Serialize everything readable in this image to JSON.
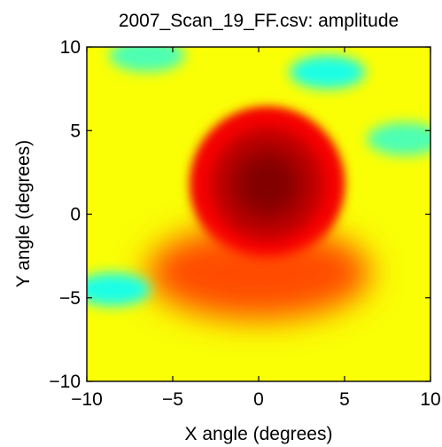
{
  "chart_data": {
    "type": "heatmap",
    "title": "2007_Scan_19_FF.csv: amplitude",
    "xlabel": "X angle (degrees)",
    "ylabel": "Y angle (degrees)",
    "xlim": [
      -10,
      10
    ],
    "ylim": [
      -10,
      10
    ],
    "x_ticks": [
      -10,
      -5,
      0,
      5,
      10
    ],
    "y_ticks": [
      -10,
      -5,
      0,
      5,
      10
    ],
    "x_tick_labels": [
      "−10",
      "−5",
      "0",
      "5",
      "10"
    ],
    "y_tick_labels": [
      "−10",
      "−5",
      "0",
      "5",
      "10"
    ],
    "colormap": "jet",
    "colorbar": false,
    "grid": false,
    "background_level": 0.62,
    "features": [
      {
        "kind": "main_lobe",
        "x": 0.5,
        "y": 1.8,
        "radius": 4.2,
        "level": 1.0
      },
      {
        "kind": "shoulder",
        "x": 0.0,
        "y": -3.5,
        "rx": 6.5,
        "ry": 2.8,
        "level": 0.8
      },
      {
        "kind": "minimum",
        "x": -8.5,
        "y": -4.5,
        "level": 0.4
      },
      {
        "kind": "minimum",
        "x": 4.0,
        "y": 8.5,
        "level": 0.4
      },
      {
        "kind": "minimum",
        "x": -6.5,
        "y": 9.5,
        "level": 0.45
      },
      {
        "kind": "minimum",
        "x": 8.5,
        "y": 4.5,
        "level": 0.45
      }
    ]
  },
  "colors": {
    "axis": "#000000",
    "background": "#ffffff"
  }
}
